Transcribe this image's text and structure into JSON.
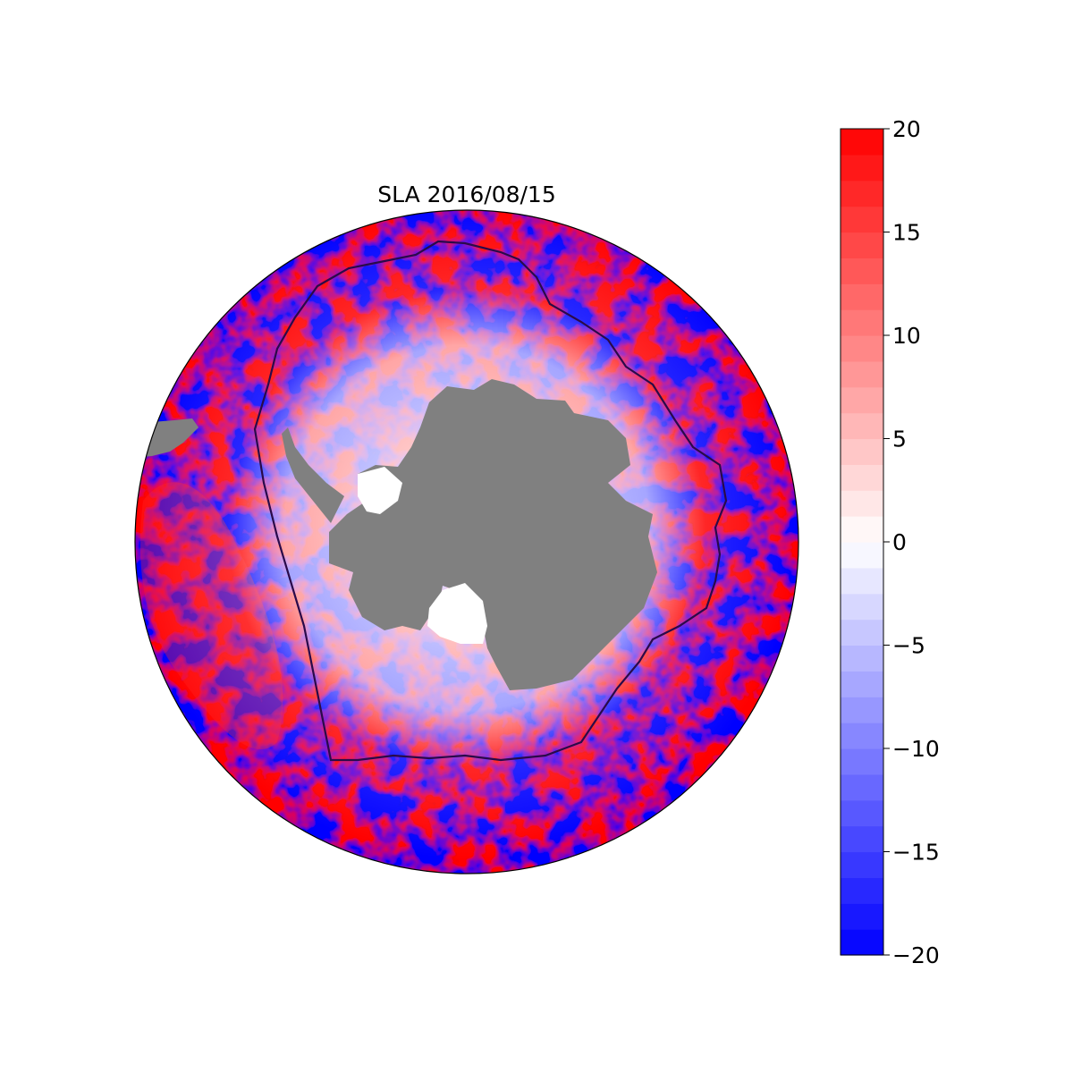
{
  "map": {
    "title": "SLA 2016/08/15",
    "projection": "south-polar-stereographic",
    "land_color": "#808080",
    "ice_color": "#ffffff",
    "front_color": "#2a0a4a"
  },
  "colorbar": {
    "cmap": "bwr",
    "vmin": -20,
    "vmax": 20,
    "levels": 32,
    "ticks": [
      {
        "value": 20,
        "label": "20"
      },
      {
        "value": 15,
        "label": "15"
      },
      {
        "value": 10,
        "label": "10"
      },
      {
        "value": 5,
        "label": "5"
      },
      {
        "value": 0,
        "label": "0"
      },
      {
        "value": -5,
        "label": "−5"
      },
      {
        "value": -10,
        "label": "−10"
      },
      {
        "value": -15,
        "label": "−15"
      },
      {
        "value": -20,
        "label": "−20"
      }
    ]
  }
}
